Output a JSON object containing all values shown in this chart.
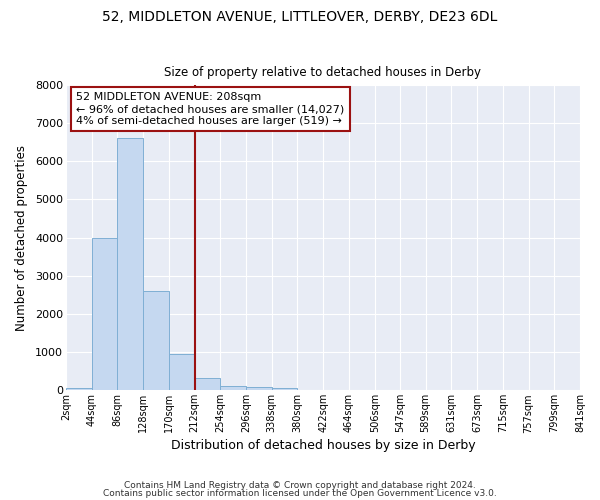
{
  "title": "52, MIDDLETON AVENUE, LITTLEOVER, DERBY, DE23 6DL",
  "subtitle": "Size of property relative to detached houses in Derby",
  "xlabel": "Distribution of detached houses by size in Derby",
  "ylabel": "Number of detached properties",
  "annotation_line1": "52 MIDDLETON AVENUE: 208sqm",
  "annotation_line2": "← 96% of detached houses are smaller (14,027)",
  "annotation_line3": "4% of semi-detached houses are larger (519) →",
  "bin_edges": [
    2,
    44,
    86,
    128,
    170,
    212,
    254,
    296,
    338,
    380,
    422,
    464,
    506,
    547,
    589,
    631,
    673,
    715,
    757,
    799,
    841
  ],
  "bin_labels": [
    "2sqm",
    "44sqm",
    "86sqm",
    "128sqm",
    "170sqm",
    "212sqm",
    "254sqm",
    "296sqm",
    "338sqm",
    "380sqm",
    "422sqm",
    "464sqm",
    "506sqm",
    "547sqm",
    "589sqm",
    "631sqm",
    "673sqm",
    "715sqm",
    "757sqm",
    "799sqm",
    "841sqm"
  ],
  "counts": [
    50,
    3980,
    6600,
    2600,
    960,
    310,
    115,
    90,
    60,
    0,
    0,
    0,
    0,
    0,
    0,
    0,
    0,
    0,
    0,
    0
  ],
  "bar_color": "#c5d8f0",
  "bar_edge_color": "#7fafd4",
  "vline_color": "#9b1111",
  "vline_x": 212,
  "annotation_box_edge_color": "#9b1111",
  "background_color": "#e8ecf5",
  "fig_background": "#ffffff",
  "ylim": [
    0,
    8000
  ],
  "yticks": [
    0,
    1000,
    2000,
    3000,
    4000,
    5000,
    6000,
    7000,
    8000
  ],
  "footer1": "Contains HM Land Registry data © Crown copyright and database right 2024.",
  "footer2": "Contains public sector information licensed under the Open Government Licence v3.0."
}
